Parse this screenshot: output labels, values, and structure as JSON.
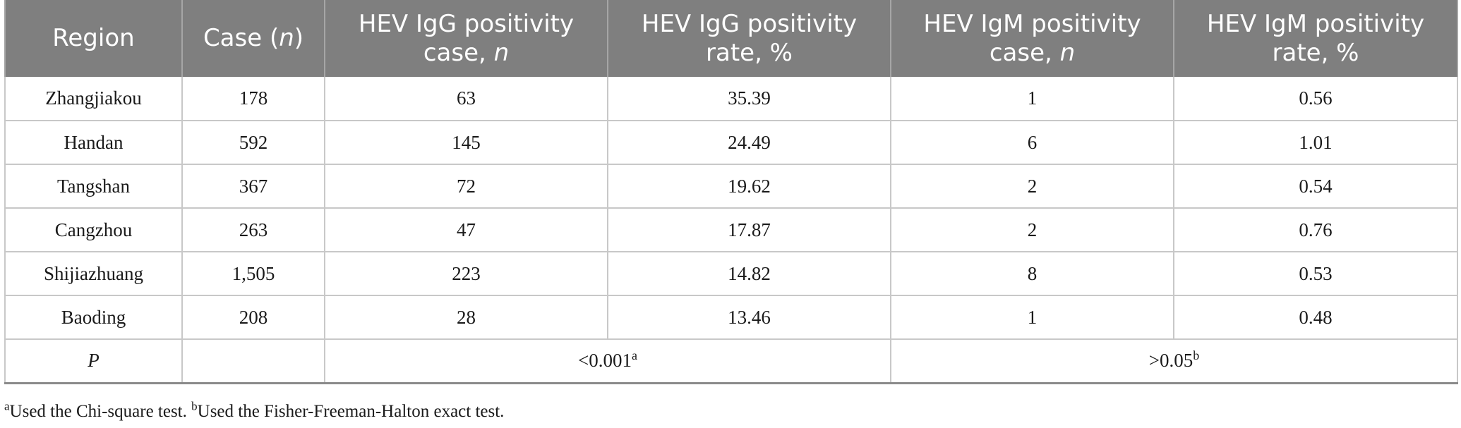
{
  "header": {
    "region": "Region",
    "case_prefix": "Case (",
    "case_n": "n",
    "case_suffix": ")",
    "igg_case_line1": "HEV IgG positivity",
    "igg_case_line2_prefix": "case, ",
    "igg_case_n": "n",
    "igg_rate_line1": "HEV IgG positivity",
    "igg_rate_line2": "rate, %",
    "igm_case_line1": "HEV IgM positivity",
    "igm_case_line2_prefix": "case, ",
    "igm_case_n": "n",
    "igm_rate_line1": "HEV IgM positivity",
    "igm_rate_line2": "rate, %"
  },
  "rows": [
    {
      "region": "Zhangjiakou",
      "case": "178",
      "igg_case": "63",
      "igg_rate": "35.39",
      "igm_case": "1",
      "igm_rate": "0.56"
    },
    {
      "region": "Handan",
      "case": "592",
      "igg_case": "145",
      "igg_rate": "24.49",
      "igm_case": "6",
      "igm_rate": "1.01"
    },
    {
      "region": "Tangshan",
      "case": "367",
      "igg_case": "72",
      "igg_rate": "19.62",
      "igm_case": "2",
      "igm_rate": "0.54"
    },
    {
      "region": "Cangzhou",
      "case": "263",
      "igg_case": "47",
      "igg_rate": "17.87",
      "igm_case": "2",
      "igm_rate": "0.76"
    },
    {
      "region": "Shijiazhuang",
      "case": "1,505",
      "igg_case": "223",
      "igg_rate": "14.82",
      "igm_case": "8",
      "igm_rate": "0.53"
    },
    {
      "region": "Baoding",
      "case": "208",
      "igg_case": "28",
      "igg_rate": "13.46",
      "igm_case": "1",
      "igm_rate": "0.48"
    }
  ],
  "p_row": {
    "label": "P",
    "igg_value": "<0.001",
    "igg_sup": "a",
    "igm_value": ">0.05",
    "igm_sup": "b"
  },
  "footnote": {
    "a_mark": "a",
    "a_text": "Used the Chi-square test. ",
    "b_mark": "b",
    "b_text": "Used the Fisher-Freeman-Halton exact test."
  }
}
